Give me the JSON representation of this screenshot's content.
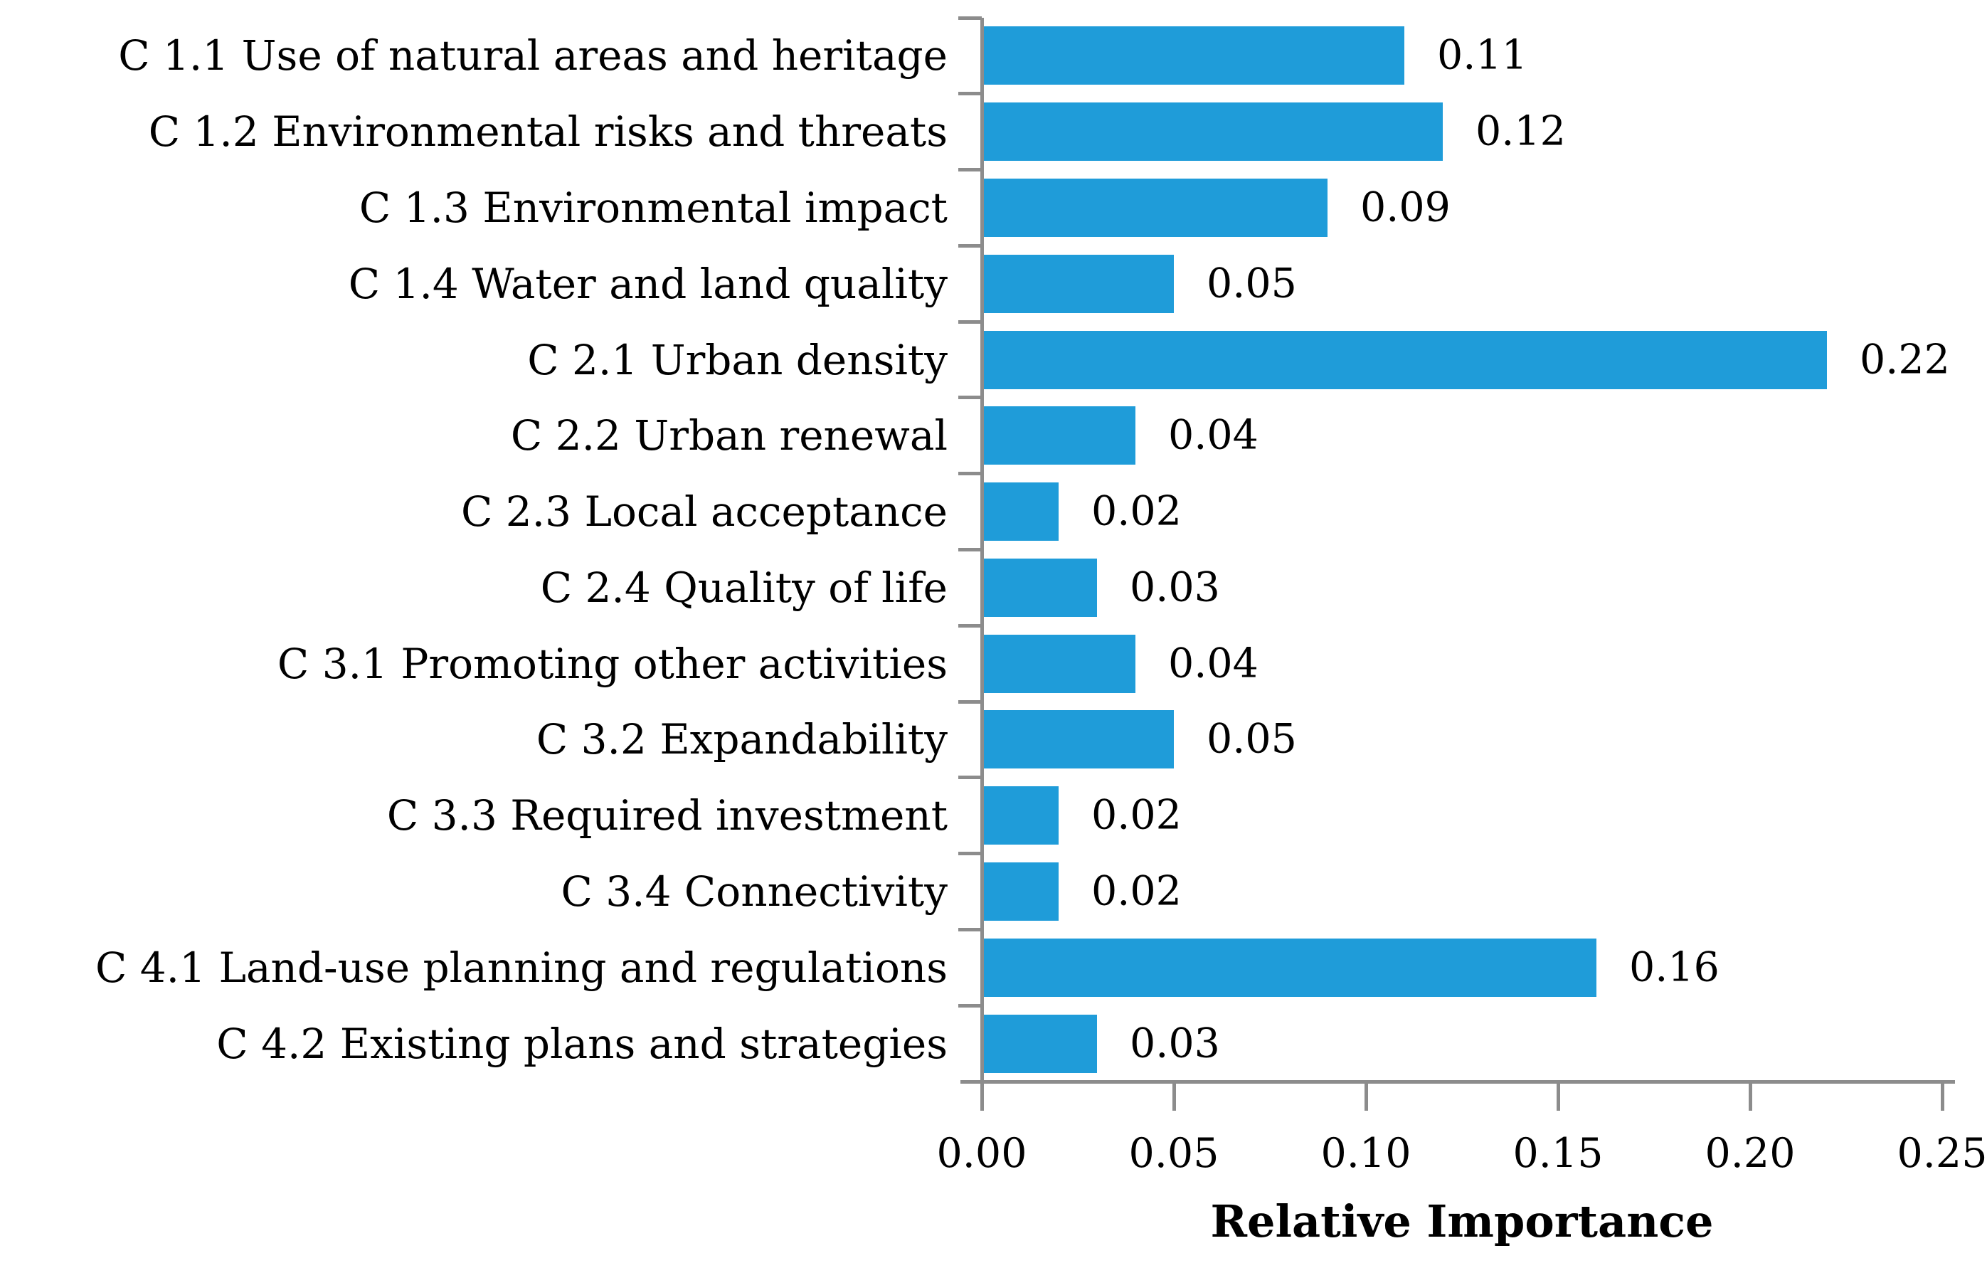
{
  "chart_data": {
    "type": "bar",
    "orientation": "horizontal",
    "title": "",
    "xlabel": "Relative Importance",
    "ylabel": "",
    "categories": [
      "C 1.1 Use of natural areas and heritage",
      "C 1.2 Environmental risks and threats",
      "C 1.3 Environmental impact",
      "C 1.4 Water and land quality",
      "C 2.1 Urban density",
      "C 2.2 Urban renewal",
      "C 2.3 Local acceptance",
      "C 2.4 Quality of life",
      "C 3.1 Promoting other activities",
      "C 3.2 Expandability",
      "C 3.3 Required investment",
      "C 3.4 Connectivity",
      "C 4.1 Land-use planning and regulations",
      "C 4.2 Existing plans and strategies"
    ],
    "values": [
      0.11,
      0.12,
      0.09,
      0.05,
      0.22,
      0.04,
      0.02,
      0.03,
      0.04,
      0.05,
      0.02,
      0.02,
      0.16,
      0.03
    ],
    "value_labels": [
      "0.11",
      "0.12",
      "0.09",
      "0.05",
      "0.22",
      "0.04",
      "0.02",
      "0.03",
      "0.04",
      "0.05",
      "0.02",
      "0.02",
      "0.16",
      "0.03"
    ],
    "xlim": [
      0,
      0.25
    ],
    "xticks": [
      "0.00",
      "0.05",
      "0.10",
      "0.15",
      "0.20",
      "0.25"
    ],
    "xtick_values": [
      0,
      0.05,
      0.1,
      0.15,
      0.2,
      0.25
    ],
    "grid": false,
    "legend": "none",
    "bar_color": "#1F9CD9",
    "axis_color": "#8C8C8C",
    "text_color": "#000000"
  }
}
